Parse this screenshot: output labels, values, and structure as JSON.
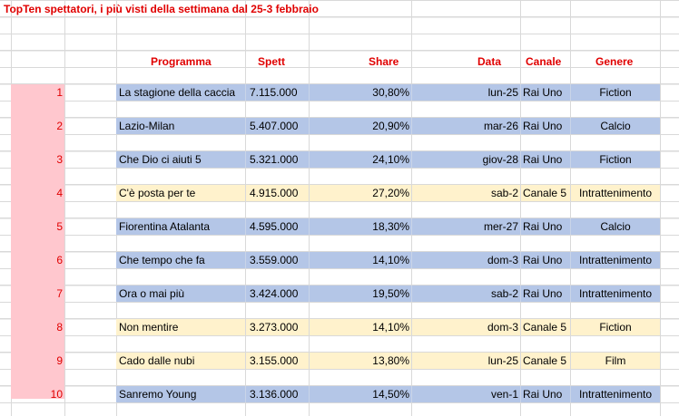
{
  "title": "TopTen spettatori, i più visti della settimana dal 25-3 febbraio",
  "headers": {
    "programma": "Programma",
    "spett": "Spett",
    "share": "Share",
    "data": "Data",
    "canale": "Canale",
    "genere": "Genere"
  },
  "colors": {
    "header_text": "#e00000",
    "rank_fill": "#ffc7ce",
    "rai_row_fill": "#b4c6e7",
    "canale5_row_fill": "#fff2cc"
  },
  "rows": [
    {
      "rank": "1",
      "programma": "La stagione della caccia",
      "spett": "7.115.000",
      "share": "30,80%",
      "data": "lun-25",
      "canale": "Rai Uno",
      "genere": "Fiction"
    },
    {
      "rank": "2",
      "programma": "Lazio-Milan",
      "spett": "5.407.000",
      "share": "20,90%",
      "data": "mar-26",
      "canale": "Rai Uno",
      "genere": "Calcio"
    },
    {
      "rank": "3",
      "programma": "Che Dio ci aiuti 5",
      "spett": "5.321.000",
      "share": "24,10%",
      "data": "giov-28",
      "canale": "Rai Uno",
      "genere": "Fiction"
    },
    {
      "rank": "4",
      "programma": "C'è posta per te",
      "spett": "4.915.000",
      "share": "27,20%",
      "data": "sab-2",
      "canale": "Canale 5",
      "genere": "Intrattenimento"
    },
    {
      "rank": "5",
      "programma": "Fiorentina Atalanta",
      "spett": "4.595.000",
      "share": "18,30%",
      "data": "mer-27",
      "canale": "Rai Uno",
      "genere": "Calcio"
    },
    {
      "rank": "6",
      "programma": "Che tempo che fa",
      "spett": "3.559.000",
      "share": "14,10%",
      "data": "dom-3",
      "canale": "Rai Uno",
      "genere": "Intrattenimento"
    },
    {
      "rank": "7",
      "programma": "Ora o mai più",
      "spett": "3.424.000",
      "share": "19,50%",
      "data": "sab-2",
      "canale": "Rai Uno",
      "genere": "Intrattenimento"
    },
    {
      "rank": "8",
      "programma": "Non mentire",
      "spett": "3.273.000",
      "share": "14,10%",
      "data": "dom-3",
      "canale": "Canale 5",
      "genere": "Fiction"
    },
    {
      "rank": "9",
      "programma": "Cado dalle nubi",
      "spett": "3.155.000",
      "share": "13,80%",
      "data": "lun-25",
      "canale": "Canale 5",
      "genere": "Film"
    },
    {
      "rank": "10",
      "programma": "Sanremo Young",
      "spett": "3.136.000",
      "share": "14,50%",
      "data": "ven-1",
      "canale": "Rai Uno",
      "genere": "Intrattenimento"
    }
  ]
}
